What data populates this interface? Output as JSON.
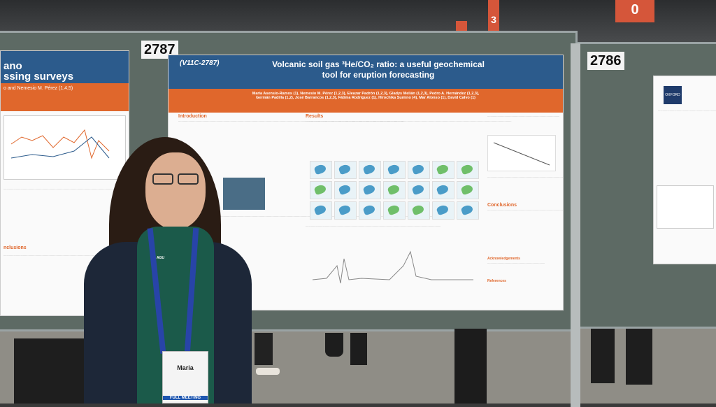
{
  "signs": {
    "left": "3",
    "right": "0"
  },
  "board_numbers": {
    "left": "2787",
    "right": "2786"
  },
  "left_poster": {
    "title_line1": "ano",
    "title_line2": "ssing surveys",
    "authors": "o and Nemesio M. Pérez (1,4,5)",
    "section": "nclusions"
  },
  "main_poster": {
    "session_id": "(V11C-2787)",
    "title_line1": "Volcanic soil gas ³He/CO₂ ratio: a useful geochemical",
    "title_line2": "tool for eruption forecasting",
    "authors_line1": "María Asensio-Ramos (1), Nemesio M. Pérez (1,2,3), Eleazar Padrón (1,2,3), Gladys Melián (1,2,3), Pedro A. Hernández (1,2,3),",
    "authors_line2": "Germán Padilla (1,2), José Barrancos (1,2,3), Fátima Rodríguez (1), Hirochika Sumino (4), Mar Alonso (1), David Calvo (1)",
    "sections": {
      "introduction": "Introduction",
      "results": "Results",
      "conclusions": "Conclusions",
      "acknowledgements": "Acknowledgements",
      "references": "References"
    }
  },
  "right_poster": {
    "logo": "OXFORD"
  },
  "badge": {
    "name": "Maria",
    "ribbon": "FULL MEETING"
  },
  "lanyard_text": "AGU",
  "colors": {
    "poster_blue": "#2c5b8c",
    "poster_orange": "#e0672c",
    "board_green": "#5d6a64",
    "sign_red": "#d5563a"
  }
}
